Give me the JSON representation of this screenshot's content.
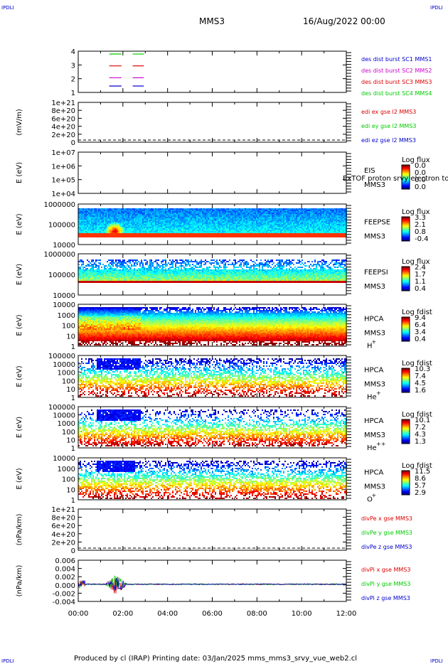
{
  "corner_label": "IPDLI",
  "title": "MMS3",
  "date": "16/Aug/2022 00:00",
  "footer": "Produced by cl (IRAP)   Printing date: 03/Jan/2025   mms_mms3_srvy_vue_web2.cl",
  "colors": {
    "red": "#dd0000",
    "green": "#00cc00",
    "blue": "#0000cc",
    "magenta": "#cc00cc"
  },
  "chart_data": [
    {
      "type": "line",
      "name": "dist-flags",
      "yticks": [
        "4",
        "3",
        "2",
        "1"
      ],
      "legend": [
        {
          "label": "des dist burst SC1 MMS1",
          "color": "#0000cc"
        },
        {
          "label": "des dist burst SC2 MMS2",
          "color": "#cc00cc"
        },
        {
          "label": "des dist burst SC3 MMS3",
          "color": "#dd0000"
        },
        {
          "label": "des dist burst SC4 MMS4",
          "color": "#00cc00"
        }
      ],
      "series": [
        {
          "level": 4,
          "color": "#00cc00",
          "segments": [
            [
              0.75,
              1.3
            ],
            [
              1.8,
              2.3
            ]
          ]
        },
        {
          "level": 3,
          "color": "#dd0000",
          "segments": [
            [
              0.75,
              1.3
            ],
            [
              1.8,
              2.3
            ]
          ]
        },
        {
          "level": 2,
          "color": "#cc00cc",
          "segments": [
            [
              0.75,
              1.3
            ],
            [
              1.8,
              2.3
            ]
          ]
        },
        {
          "level": 1,
          "color": "#0000cc",
          "segments": [
            [
              0.75,
              1.3
            ],
            [
              1.8,
              2.3
            ]
          ]
        }
      ]
    },
    {
      "type": "line",
      "name": "edi-e",
      "ylabel": "(mV/m)",
      "yticks": [
        "1e+21",
        "8e+20",
        "6e+20",
        "4e+20",
        "2e+20",
        "0"
      ],
      "legend": [
        {
          "label": "edi ex gse l2 MMS3",
          "color": "#dd0000"
        },
        {
          "label": "edi ey gse l2 MMS3",
          "color": "#00cc00"
        },
        {
          "label": "edi ez gse l2 MMS3",
          "color": "#0000cc"
        }
      ]
    },
    {
      "type": "heatmap",
      "name": "eis",
      "ylabel": "E (eV)",
      "yticks": [
        "1e+07",
        "1e+06",
        "1e+05",
        "1e+04"
      ],
      "instrument": [
        "EIS",
        "MMS3"
      ],
      "overlay_text": "ExTOF proton srvy electron to",
      "colorbar_title": "Log flux",
      "colorbar_ticks": [
        "0.0",
        "0.0",
        "0.0",
        "0.0"
      ]
    },
    {
      "type": "heatmap",
      "name": "feeps-e",
      "ylabel": "E (eV)",
      "yticks": [
        "1000000",
        "100000",
        "10000"
      ],
      "instrument": [
        "FEEPSE",
        "MMS3"
      ],
      "colorbar_title": "Log flux",
      "colorbar_ticks": [
        "3.3",
        "2.1",
        "0.8",
        "-0.4"
      ]
    },
    {
      "type": "heatmap",
      "name": "feeps-i",
      "ylabel": "E (eV)",
      "yticks": [
        "1000000",
        "100000",
        "10000"
      ],
      "instrument": [
        "FEEPSI",
        "MMS3"
      ],
      "colorbar_title": "Log flux",
      "colorbar_ticks": [
        "2.4",
        "1.7",
        "1.1",
        "0.4"
      ]
    },
    {
      "type": "heatmap",
      "name": "hpca-h",
      "ylabel": "E (eV)",
      "yticks": [
        "10000",
        "1000",
        "100",
        "10",
        "1"
      ],
      "instrument": [
        "HPCA",
        "MMS3"
      ],
      "species": "H",
      "species_sup": "+",
      "colorbar_title": "Log fdist",
      "colorbar_ticks": [
        "9.4",
        "6.4",
        "3.4",
        "0.4"
      ]
    },
    {
      "type": "heatmap",
      "name": "hpca-he",
      "ylabel": "E (eV)",
      "yticks": [
        "100000",
        "10000",
        "1000",
        "100",
        "10",
        "1"
      ],
      "instrument": [
        "HPCA",
        "MMS3"
      ],
      "species": "He",
      "species_sup": "+",
      "colorbar_title": "Log fdist",
      "colorbar_ticks": [
        "10.3",
        "7.4",
        "4.5",
        "1.6"
      ]
    },
    {
      "type": "heatmap",
      "name": "hpca-hepp",
      "ylabel": "E (eV)",
      "yticks": [
        "100000",
        "10000",
        "1000",
        "100",
        "10",
        "1"
      ],
      "instrument": [
        "HPCA",
        "MMS3"
      ],
      "species": "He",
      "species_sup": "++",
      "colorbar_title": "Log fdist",
      "colorbar_ticks": [
        "10.1",
        "7.2",
        "4.3",
        "1.3"
      ]
    },
    {
      "type": "heatmap",
      "name": "hpca-o",
      "ylabel": "E (eV)",
      "yticks": [
        "10000",
        "1000",
        "100",
        "10",
        "1"
      ],
      "instrument": [
        "HPCA",
        "MMS3"
      ],
      "species": "O",
      "species_sup": "+",
      "colorbar_title": "Log fdist",
      "colorbar_ticks": [
        "11.5",
        "8.6",
        "5.7",
        "2.9"
      ]
    },
    {
      "type": "line",
      "name": "divpe",
      "ylabel": "(nPa/km)",
      "yticks": [
        "1e+21",
        "8e+20",
        "6e+20",
        "4e+20",
        "2e+20",
        "0"
      ],
      "legend": [
        {
          "label": "divPe x gse MMS3",
          "color": "#dd0000"
        },
        {
          "label": "divPe y gse MMS3",
          "color": "#00cc00"
        },
        {
          "label": "divPe z gse MMS3",
          "color": "#0000cc"
        }
      ]
    },
    {
      "type": "line",
      "name": "divpi",
      "ylabel": "(nPa/km)",
      "yticks": [
        "0.006",
        "0.004",
        "0.002",
        "0.000",
        "-0.002",
        "-0.004"
      ],
      "ylim": [
        -0.005,
        0.007
      ],
      "legend": [
        {
          "label": "divPi x gse MMS3",
          "color": "#dd0000"
        },
        {
          "label": "divPi y gse MMS3",
          "color": "#00cc00"
        },
        {
          "label": "divPi z gse MMS3",
          "color": "#0000cc"
        }
      ]
    }
  ],
  "xaxis": {
    "ticks": [
      "00:00",
      "02:00",
      "04:00",
      "06:00",
      "08:00",
      "10:00",
      "12:00"
    ],
    "range_hours": [
      0,
      12
    ]
  }
}
